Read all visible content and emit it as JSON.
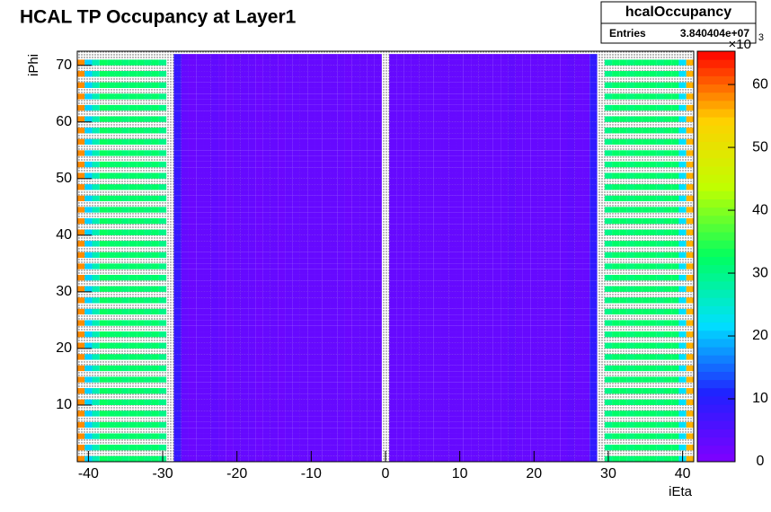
{
  "chart_data": {
    "type": "heatmap",
    "title": "HCAL TP Occupancy at Layer1",
    "x_label": "iEta",
    "y_label": "iPhi",
    "stats": {
      "name": "hcalOccupancy",
      "entries_label": "Entries",
      "entries": "3.840404e+07"
    },
    "x": [
      -41,
      -40,
      -39,
      -38,
      -37,
      -36,
      -35,
      -34,
      -33,
      -32,
      -31,
      -30,
      -29,
      -28,
      -27,
      -26,
      -25,
      -24,
      -23,
      -22,
      -21,
      -20,
      -19,
      -18,
      -17,
      -16,
      -15,
      -14,
      -13,
      -12,
      -11,
      -10,
      -9,
      -8,
      -7,
      -6,
      -5,
      -4,
      -3,
      -2,
      -1,
      0,
      1,
      2,
      3,
      4,
      5,
      6,
      7,
      8,
      9,
      10,
      11,
      12,
      13,
      14,
      15,
      16,
      17,
      18,
      19,
      20,
      21,
      22,
      23,
      24,
      25,
      26,
      27,
      28,
      29,
      30,
      31,
      32,
      33,
      34,
      35,
      36,
      37,
      38,
      39,
      40,
      41
    ],
    "values": [
      58,
      21,
      27,
      33,
      32,
      32,
      31,
      32,
      32,
      31,
      32,
      30,
      null,
      8,
      3,
      2.5,
      3,
      3,
      3.5,
      3,
      2.5,
      3,
      3,
      3,
      2.5,
      3,
      3,
      2.5,
      3,
      3,
      3,
      3,
      3,
      3,
      3,
      3,
      2.5,
      3,
      3,
      3,
      3,
      null,
      3,
      3,
      3,
      3,
      3,
      3,
      3,
      3,
      3,
      3,
      3,
      3,
      3,
      3,
      3,
      3,
      3.5,
      3,
      3,
      3,
      3,
      3,
      3,
      3,
      3.5,
      3,
      3,
      9,
      null,
      30,
      32,
      32,
      31,
      32,
      32,
      32,
      31,
      32,
      32,
      22,
      56
    ],
    "phi_step": [
      2,
      2,
      2,
      2,
      2,
      2,
      2,
      2,
      2,
      2,
      2,
      2,
      null,
      1,
      1,
      1,
      1,
      1,
      1,
      1,
      1,
      1,
      1,
      1,
      1,
      1,
      1,
      1,
      1,
      1,
      1,
      1,
      1,
      1,
      1,
      1,
      1,
      1,
      1,
      1,
      1,
      null,
      1,
      1,
      1,
      1,
      1,
      1,
      1,
      1,
      1,
      1,
      1,
      1,
      1,
      1,
      1,
      1,
      1,
      1,
      1,
      1,
      1,
      1,
      1,
      1,
      1,
      1,
      1,
      1,
      null,
      2,
      2,
      2,
      2,
      2,
      2,
      2,
      2,
      2,
      2,
      2,
      2
    ],
    "xlim": [
      -41.5,
      41.5
    ],
    "ylim": [
      0,
      72.5
    ],
    "zlim": [
      0,
      65.3
    ],
    "xticks": [
      -40,
      -30,
      -20,
      -10,
      0,
      10,
      20,
      30,
      40
    ],
    "yticks": [
      10,
      20,
      30,
      40,
      50,
      60,
      70
    ],
    "zticks": [
      0,
      10,
      20,
      30,
      40,
      50,
      60
    ],
    "z_multiplier": {
      "base": "×10",
      "exponent": "3"
    },
    "palette": [
      "#8000ff",
      "#2020ff",
      "#00e0ff",
      "#00ff60",
      "#c0ff00",
      "#ffd000",
      "#ff0000"
    ]
  }
}
